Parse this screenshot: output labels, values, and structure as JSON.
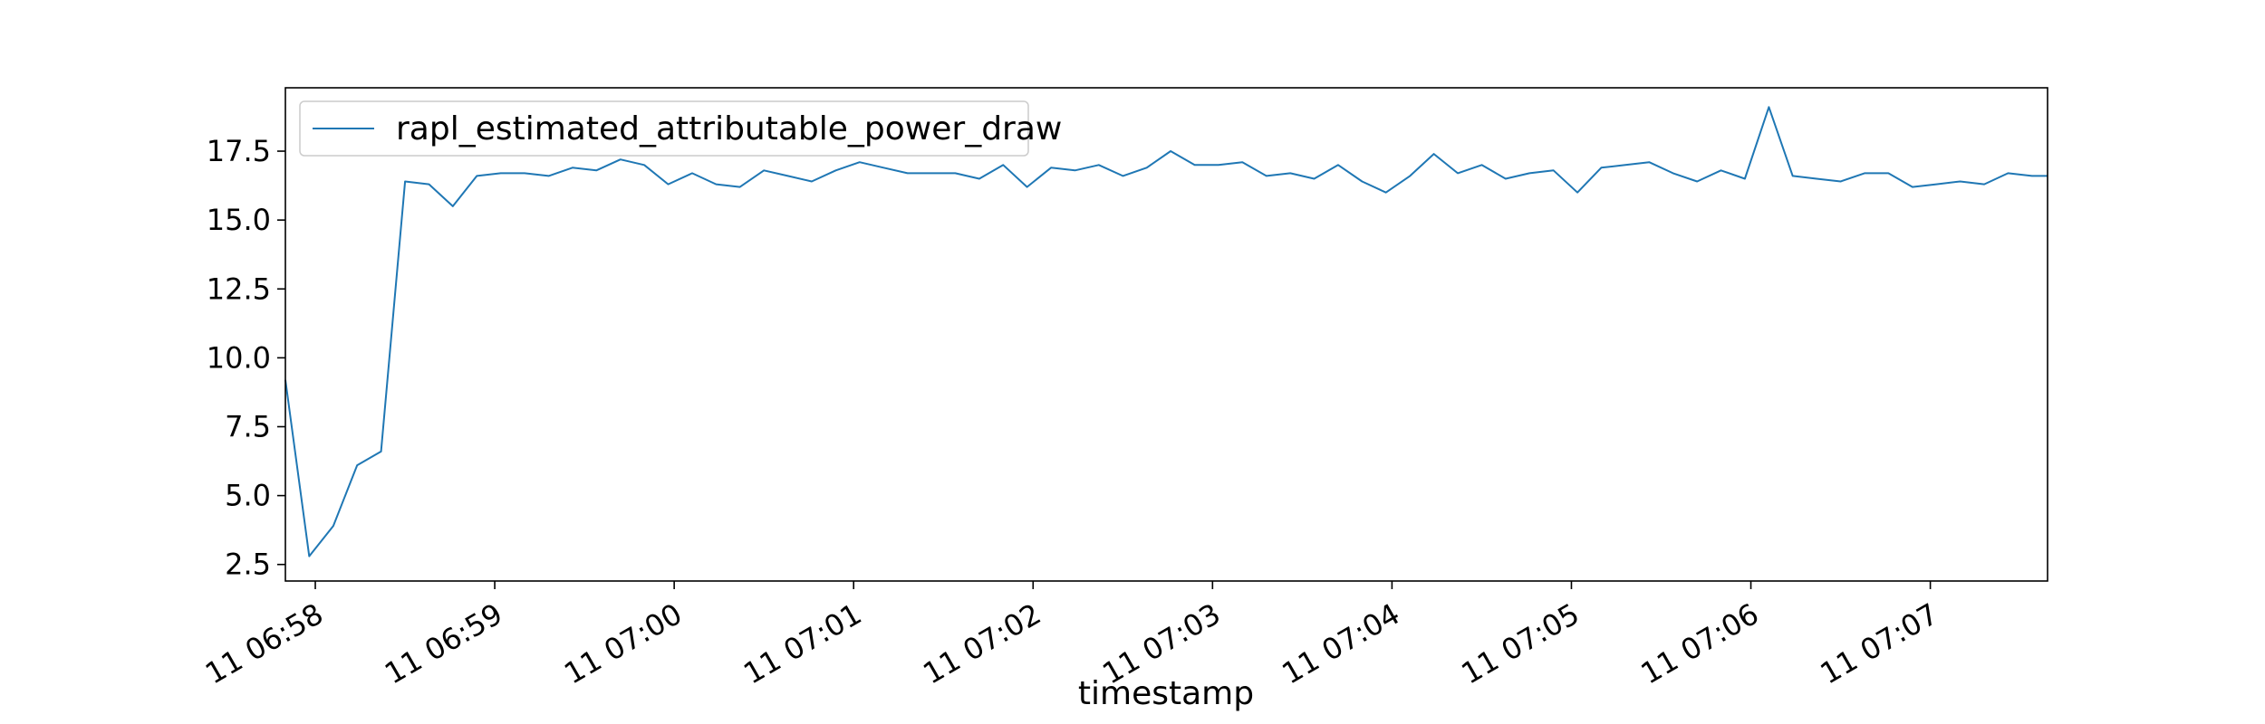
{
  "chart_data": {
    "type": "line",
    "title": "",
    "xlabel": "timestamp",
    "ylabel": "",
    "x_ticks": [
      "11 06:58",
      "11 06:59",
      "11 07:00",
      "11 07:01",
      "11 07:02",
      "11 07:03",
      "11 07:04",
      "11 07:05",
      "11 07:06",
      "11 07:07"
    ],
    "y_ticks": [
      "2.5",
      "5.0",
      "7.5",
      "10.0",
      "12.5",
      "15.0",
      "17.5"
    ],
    "xlim": [
      "06:57:50",
      "06:57:50+9.82min"
    ],
    "ylim": [
      1.9,
      19.8
    ],
    "legend_position": "top-left",
    "grid": false,
    "color": "#1f77b4",
    "series": [
      {
        "name": "rapl_estimated_attributable_power_draw",
        "x_minutes_after_0657_50": [
          0.0,
          0.133,
          0.267,
          0.4,
          0.533,
          0.667,
          0.8,
          0.933,
          1.067,
          1.2,
          1.333,
          1.467,
          1.6,
          1.733,
          1.867,
          2.0,
          2.133,
          2.267,
          2.4,
          2.533,
          2.667,
          2.8,
          2.933,
          3.067,
          3.2,
          3.333,
          3.467,
          3.6,
          3.733,
          3.867,
          4.0,
          4.133,
          4.267,
          4.4,
          4.533,
          4.667,
          4.8,
          4.933,
          5.067,
          5.2,
          5.333,
          5.467,
          5.6,
          5.733,
          5.867,
          6.0,
          6.133,
          6.267,
          6.4,
          6.533,
          6.667,
          6.8,
          6.933,
          7.067,
          7.2,
          7.333,
          7.467,
          7.6,
          7.733,
          7.867,
          8.0,
          8.133,
          8.267,
          8.4,
          8.533,
          8.667,
          8.8,
          8.933,
          9.067,
          9.2,
          9.333,
          9.467,
          9.6,
          9.733,
          9.82
        ],
        "values": [
          9.2,
          2.8,
          3.9,
          6.1,
          6.6,
          16.4,
          16.3,
          15.5,
          16.6,
          16.7,
          16.7,
          16.6,
          16.9,
          16.8,
          17.2,
          17.0,
          16.3,
          16.7,
          16.3,
          16.2,
          16.8,
          16.6,
          16.4,
          16.8,
          17.1,
          16.9,
          16.7,
          16.7,
          16.7,
          16.5,
          17.0,
          16.2,
          16.9,
          16.8,
          17.0,
          16.6,
          16.9,
          17.5,
          17.0,
          17.0,
          17.1,
          16.6,
          16.7,
          16.5,
          17.0,
          16.4,
          16.0,
          16.6,
          17.4,
          16.7,
          17.0,
          16.5,
          16.7,
          16.8,
          16.0,
          16.9,
          17.0,
          17.1,
          16.7,
          16.4,
          16.8,
          16.5,
          19.1,
          16.6,
          16.5,
          16.4,
          16.7,
          16.7,
          16.2,
          16.3,
          16.4,
          16.3,
          16.7,
          16.6,
          16.6
        ]
      }
    ]
  }
}
